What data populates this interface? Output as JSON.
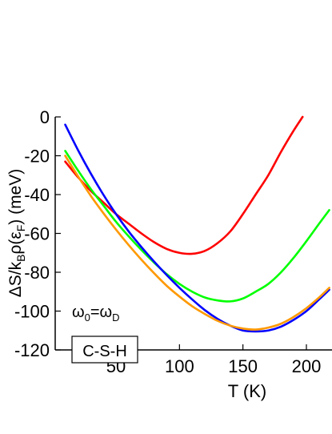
{
  "chart_data": {
    "type": "line",
    "xlabel": "T (K)",
    "ylabel": "ΔS/kBρ(εF) (meV)",
    "xlim": [
      10,
      218
    ],
    "ylim": [
      -120,
      0
    ],
    "x_ticks": [
      50,
      100,
      150,
      200
    ],
    "x_tick_labels": [
      "50",
      "100",
      "150",
      "200"
    ],
    "y_ticks": [
      0,
      -20,
      -40,
      -60,
      -80,
      -100,
      -120
    ],
    "y_tick_labels": [
      "0",
      "-20",
      "-40",
      "-60",
      "-80",
      "-100",
      "-120"
    ],
    "grid": false,
    "legend": "none",
    "annotations": {
      "omega_label": "ω0=ωD",
      "material_label": "C-S-H"
    },
    "series": [
      {
        "color": "#ff0000",
        "x": [
          10,
          20,
          30,
          40,
          50,
          60,
          70,
          80,
          90,
          100,
          110,
          120,
          130,
          140,
          150,
          160,
          170,
          180,
          190,
          197
        ],
        "y": [
          -23,
          -31,
          -38,
          -44,
          -50,
          -55,
          -60,
          -64.5,
          -68,
          -70,
          -70.5,
          -69,
          -65,
          -59,
          -50,
          -40,
          -30,
          -18,
          -7,
          0
        ]
      },
      {
        "color": "#00ff00",
        "x": [
          10,
          20,
          30,
          40,
          50,
          60,
          70,
          80,
          90,
          100,
          110,
          120,
          130,
          140,
          150,
          160,
          170,
          180,
          190,
          200,
          210,
          218
        ],
        "y": [
          -17.5,
          -27.5,
          -37,
          -45.5,
          -54,
          -61.5,
          -68.5,
          -75,
          -81,
          -86,
          -90,
          -93,
          -94.5,
          -95,
          -93.5,
          -90,
          -86,
          -80,
          -72.5,
          -64,
          -55,
          -48
        ]
      },
      {
        "color": "#0000ff",
        "x": [
          10,
          20,
          30,
          40,
          50,
          60,
          70,
          80,
          90,
          100,
          110,
          120,
          130,
          140,
          150,
          160,
          170,
          180,
          190,
          200,
          210,
          218
        ],
        "y": [
          -4,
          -17,
          -29,
          -40,
          -50,
          -59,
          -67,
          -74.5,
          -81.5,
          -88,
          -94,
          -99.5,
          -104,
          -107.5,
          -110,
          -110.5,
          -110,
          -108,
          -104.5,
          -100,
          -94,
          -89
        ]
      },
      {
        "color": "#ff9900",
        "x": [
          10,
          20,
          30,
          40,
          50,
          60,
          70,
          80,
          90,
          100,
          110,
          120,
          130,
          140,
          150,
          160,
          170,
          180,
          190,
          200,
          210,
          218
        ],
        "y": [
          -20,
          -30.5,
          -40.5,
          -49.5,
          -58,
          -66,
          -73.5,
          -80.5,
          -87,
          -92.5,
          -97.5,
          -101.5,
          -105,
          -107.5,
          -109,
          -109.5,
          -108.5,
          -106.5,
          -103,
          -98.5,
          -93,
          -88
        ]
      }
    ]
  }
}
